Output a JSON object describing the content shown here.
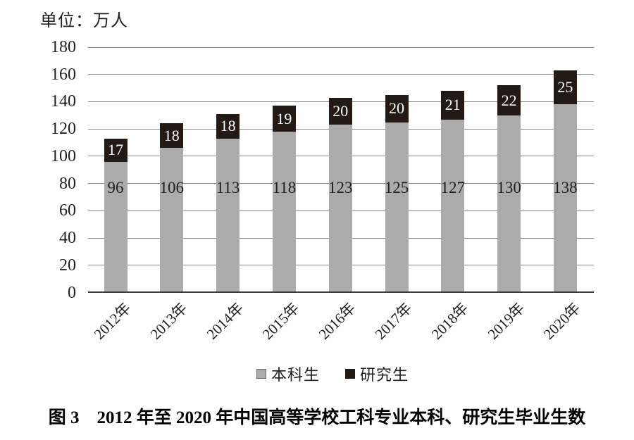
{
  "chart_data": {
    "type": "bar",
    "stacked": true,
    "title": "图 3　2012 年至 2020 年中国高等学校工科专业本科、研究生毕业生数",
    "unit_label": "单位：万人",
    "unit": "万人",
    "categories": [
      "2012年",
      "2013年",
      "2014年",
      "2015年",
      "2016年",
      "2017年",
      "2018年",
      "2019年",
      "2020年"
    ],
    "series": [
      {
        "name": "本科生",
        "values": [
          96,
          106,
          113,
          118,
          123,
          125,
          127,
          130,
          138
        ],
        "color": "#ababab",
        "swatch_border": "#6e6e6e",
        "label_color": "#1f1f1f"
      },
      {
        "name": "研究生",
        "values": [
          17,
          18,
          18,
          19,
          20,
          20,
          21,
          22,
          25
        ],
        "color": "#231a16",
        "swatch_border": "#231a16",
        "label_color": "#ffffff"
      }
    ],
    "totals": [
      113,
      124,
      131,
      137,
      143,
      145,
      148,
      152,
      163
    ],
    "ylim": [
      0,
      180
    ],
    "ytick_step": 20,
    "yticks": [
      0,
      20,
      40,
      60,
      80,
      100,
      120,
      140,
      160,
      180
    ],
    "grid": true,
    "gridline_color": "#858585",
    "axis_color": "#3c3c3c",
    "legend_position": "bottom",
    "x_label_rotation": -45
  }
}
